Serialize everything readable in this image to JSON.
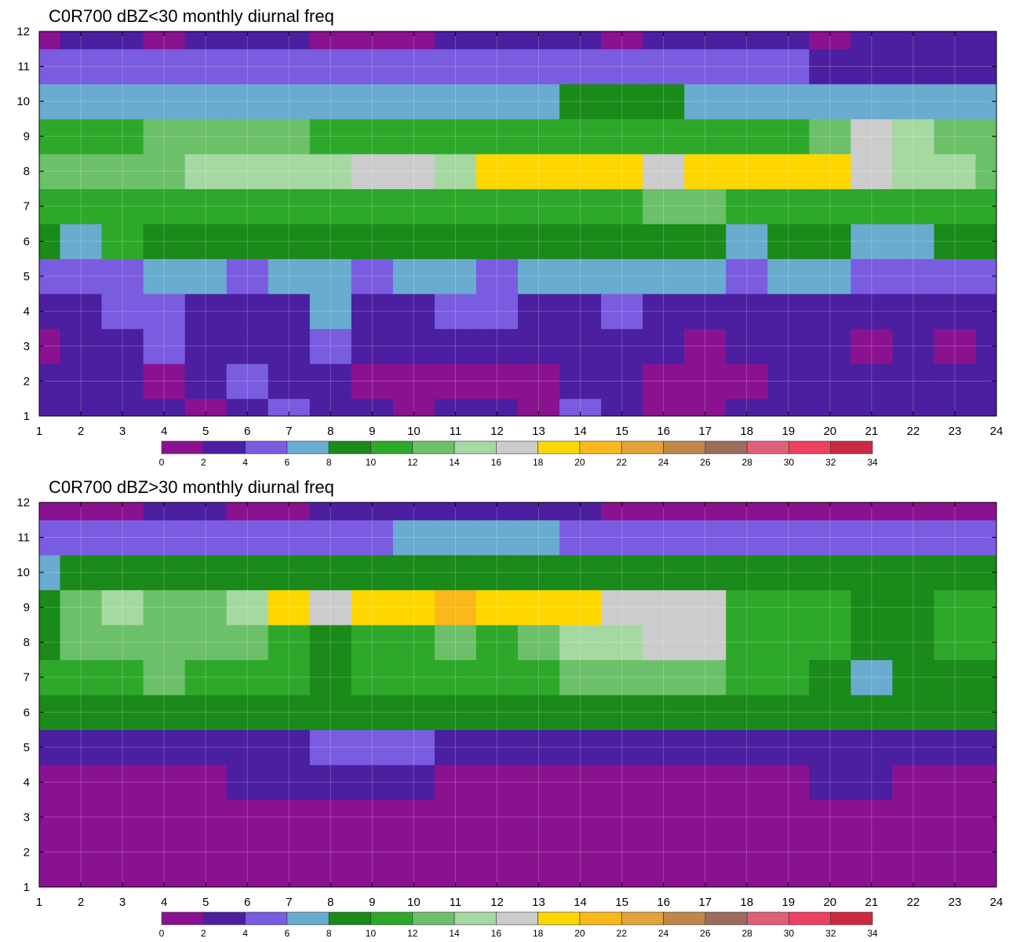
{
  "chart_data": [
    {
      "type": "heatmap",
      "title": "C0R700 dBZ<30 monthly diurnal freq",
      "xlabel": "",
      "ylabel": "",
      "x": [
        1,
        2,
        3,
        4,
        5,
        6,
        7,
        8,
        9,
        10,
        11,
        12,
        13,
        14,
        15,
        16,
        17,
        18,
        19,
        20,
        21,
        22,
        23,
        24
      ],
      "y": [
        1,
        2,
        3,
        4,
        5,
        6,
        7,
        8,
        9,
        10,
        11,
        12
      ],
      "xlim": [
        1,
        24
      ],
      "ylim": [
        1,
        12
      ],
      "grid": true,
      "colorbar": {
        "levels": [
          0,
          2,
          4,
          6,
          8,
          10,
          12,
          14,
          16,
          18,
          20,
          22,
          24,
          26,
          28,
          30,
          32,
          34
        ],
        "colors": [
          "#8a1290",
          "#4b1fa0",
          "#7a5ce0",
          "#6aabd0",
          "#1a8a1a",
          "#2ea82a",
          "#6cc06a",
          "#a6d8a2",
          "#cccccc",
          "#ffd700",
          "#fbb81a",
          "#e4a23a",
          "#bf8848",
          "#9e6c5c",
          "#e0607a",
          "#ee4062",
          "#cc2a44"
        ]
      },
      "z": [
        [
          1,
          1,
          1,
          1,
          0,
          1,
          2,
          1,
          1,
          0,
          1,
          1,
          0,
          2,
          1,
          0,
          0,
          1,
          1,
          1,
          1,
          1,
          1,
          1
        ],
        [
          1,
          1,
          1,
          0,
          1,
          2,
          1,
          1,
          0,
          0,
          0,
          0,
          0,
          1,
          1,
          0,
          0,
          0,
          1,
          1,
          1,
          1,
          1,
          1
        ],
        [
          0,
          1,
          1,
          2,
          1,
          1,
          1,
          2,
          1,
          1,
          1,
          1,
          1,
          1,
          1,
          1,
          0,
          1,
          1,
          1,
          0,
          1,
          0,
          1
        ],
        [
          1,
          1,
          2,
          2,
          1,
          1,
          1,
          3,
          1,
          1,
          2,
          2,
          1,
          1,
          2,
          1,
          1,
          1,
          1,
          1,
          1,
          1,
          1,
          1
        ],
        [
          2,
          2,
          2,
          3,
          3,
          2,
          3,
          3,
          2,
          3,
          3,
          2,
          3,
          3,
          3,
          3,
          3,
          2,
          3,
          3,
          2,
          2,
          2,
          2
        ],
        [
          4,
          3,
          5,
          4,
          4,
          4,
          4,
          4,
          4,
          4,
          4,
          4,
          4,
          4,
          4,
          4,
          4,
          3,
          4,
          4,
          3,
          3,
          4,
          4
        ],
        [
          5,
          5,
          5,
          5,
          5,
          5,
          5,
          5,
          5,
          5,
          5,
          5,
          5,
          5,
          5,
          6,
          6,
          5,
          5,
          5,
          5,
          5,
          5,
          5
        ],
        [
          6,
          6,
          6,
          6,
          7,
          7,
          7,
          7,
          8,
          8,
          7,
          9,
          9,
          9,
          9,
          8,
          9,
          9,
          9,
          9,
          8,
          7,
          7,
          6
        ],
        [
          5,
          5,
          5,
          6,
          6,
          6,
          6,
          5,
          5,
          5,
          5,
          5,
          5,
          5,
          5,
          5,
          5,
          5,
          5,
          6,
          8,
          7,
          6,
          6
        ],
        [
          3,
          3,
          3,
          3,
          3,
          3,
          3,
          3,
          3,
          3,
          3,
          3,
          3,
          4,
          4,
          4,
          3,
          3,
          3,
          3,
          3,
          3,
          3,
          3
        ],
        [
          2,
          2,
          2,
          2,
          2,
          2,
          2,
          2,
          2,
          2,
          2,
          2,
          2,
          2,
          2,
          2,
          2,
          2,
          2,
          1,
          1,
          1,
          1,
          1
        ],
        [
          0,
          1,
          1,
          0,
          1,
          1,
          1,
          0,
          0,
          0,
          1,
          1,
          1,
          1,
          0,
          1,
          1,
          1,
          1,
          0,
          1,
          1,
          1,
          1
        ]
      ]
    },
    {
      "type": "heatmap",
      "title": "C0R700 dBZ>30 monthly diurnal freq",
      "xlabel": "",
      "ylabel": "",
      "x": [
        1,
        2,
        3,
        4,
        5,
        6,
        7,
        8,
        9,
        10,
        11,
        12,
        13,
        14,
        15,
        16,
        17,
        18,
        19,
        20,
        21,
        22,
        23,
        24
      ],
      "y": [
        1,
        2,
        3,
        4,
        5,
        6,
        7,
        8,
        9,
        10,
        11,
        12
      ],
      "xlim": [
        1,
        24
      ],
      "ylim": [
        1,
        12
      ],
      "grid": true,
      "colorbar": {
        "levels": [
          0,
          2,
          4,
          6,
          8,
          10,
          12,
          14,
          16,
          18,
          20,
          22,
          24,
          26,
          28,
          30,
          32,
          34
        ],
        "colors": [
          "#8a1290",
          "#4b1fa0",
          "#7a5ce0",
          "#6aabd0",
          "#1a8a1a",
          "#2ea82a",
          "#6cc06a",
          "#a6d8a2",
          "#cccccc",
          "#ffd700",
          "#fbb81a",
          "#e4a23a",
          "#bf8848",
          "#9e6c5c",
          "#e0607a",
          "#ee4062",
          "#cc2a44"
        ]
      },
      "z": [
        [
          0,
          0,
          0,
          0,
          0,
          0,
          0,
          0,
          0,
          0,
          0,
          0,
          0,
          0,
          0,
          0,
          0,
          0,
          0,
          0,
          0,
          0,
          0,
          0
        ],
        [
          0,
          0,
          0,
          0,
          0,
          0,
          0,
          0,
          0,
          0,
          0,
          0,
          0,
          0,
          0,
          0,
          0,
          0,
          0,
          0,
          0,
          0,
          0,
          0
        ],
        [
          0,
          0,
          0,
          0,
          0,
          0,
          0,
          0,
          0,
          0,
          0,
          0,
          0,
          0,
          0,
          0,
          0,
          0,
          0,
          0,
          0,
          0,
          0,
          0
        ],
        [
          0,
          0,
          0,
          0,
          0,
          1,
          1,
          1,
          1,
          1,
          0,
          0,
          0,
          0,
          0,
          0,
          0,
          0,
          0,
          1,
          1,
          0,
          0,
          0
        ],
        [
          1,
          1,
          1,
          1,
          1,
          1,
          1,
          2,
          2,
          2,
          1,
          1,
          1,
          1,
          1,
          1,
          1,
          1,
          1,
          1,
          1,
          1,
          1,
          1
        ],
        [
          4,
          4,
          4,
          4,
          4,
          4,
          4,
          4,
          4,
          4,
          4,
          4,
          4,
          4,
          4,
          4,
          4,
          4,
          4,
          4,
          4,
          4,
          4,
          4
        ],
        [
          5,
          5,
          5,
          6,
          5,
          5,
          5,
          4,
          5,
          5,
          5,
          5,
          5,
          6,
          6,
          6,
          6,
          5,
          5,
          4,
          3,
          4,
          4,
          4
        ],
        [
          4,
          6,
          6,
          6,
          6,
          6,
          5,
          4,
          5,
          5,
          6,
          5,
          6,
          7,
          7,
          8,
          8,
          5,
          5,
          5,
          4,
          4,
          5,
          5
        ],
        [
          4,
          6,
          7,
          6,
          6,
          7,
          9,
          8,
          9,
          9,
          10,
          9,
          9,
          9,
          8,
          8,
          8,
          5,
          5,
          5,
          4,
          4,
          5,
          5
        ],
        [
          3,
          4,
          4,
          4,
          4,
          4,
          4,
          4,
          4,
          4,
          4,
          4,
          4,
          4,
          4,
          4,
          4,
          4,
          4,
          4,
          4,
          4,
          4,
          4
        ],
        [
          2,
          2,
          2,
          2,
          2,
          2,
          2,
          2,
          2,
          3,
          3,
          3,
          3,
          2,
          2,
          2,
          2,
          2,
          2,
          2,
          2,
          2,
          2,
          2
        ],
        [
          0,
          0,
          0,
          1,
          1,
          0,
          0,
          1,
          1,
          1,
          1,
          1,
          1,
          1,
          0,
          0,
          0,
          0,
          0,
          0,
          0,
          0,
          0,
          0
        ]
      ]
    }
  ]
}
